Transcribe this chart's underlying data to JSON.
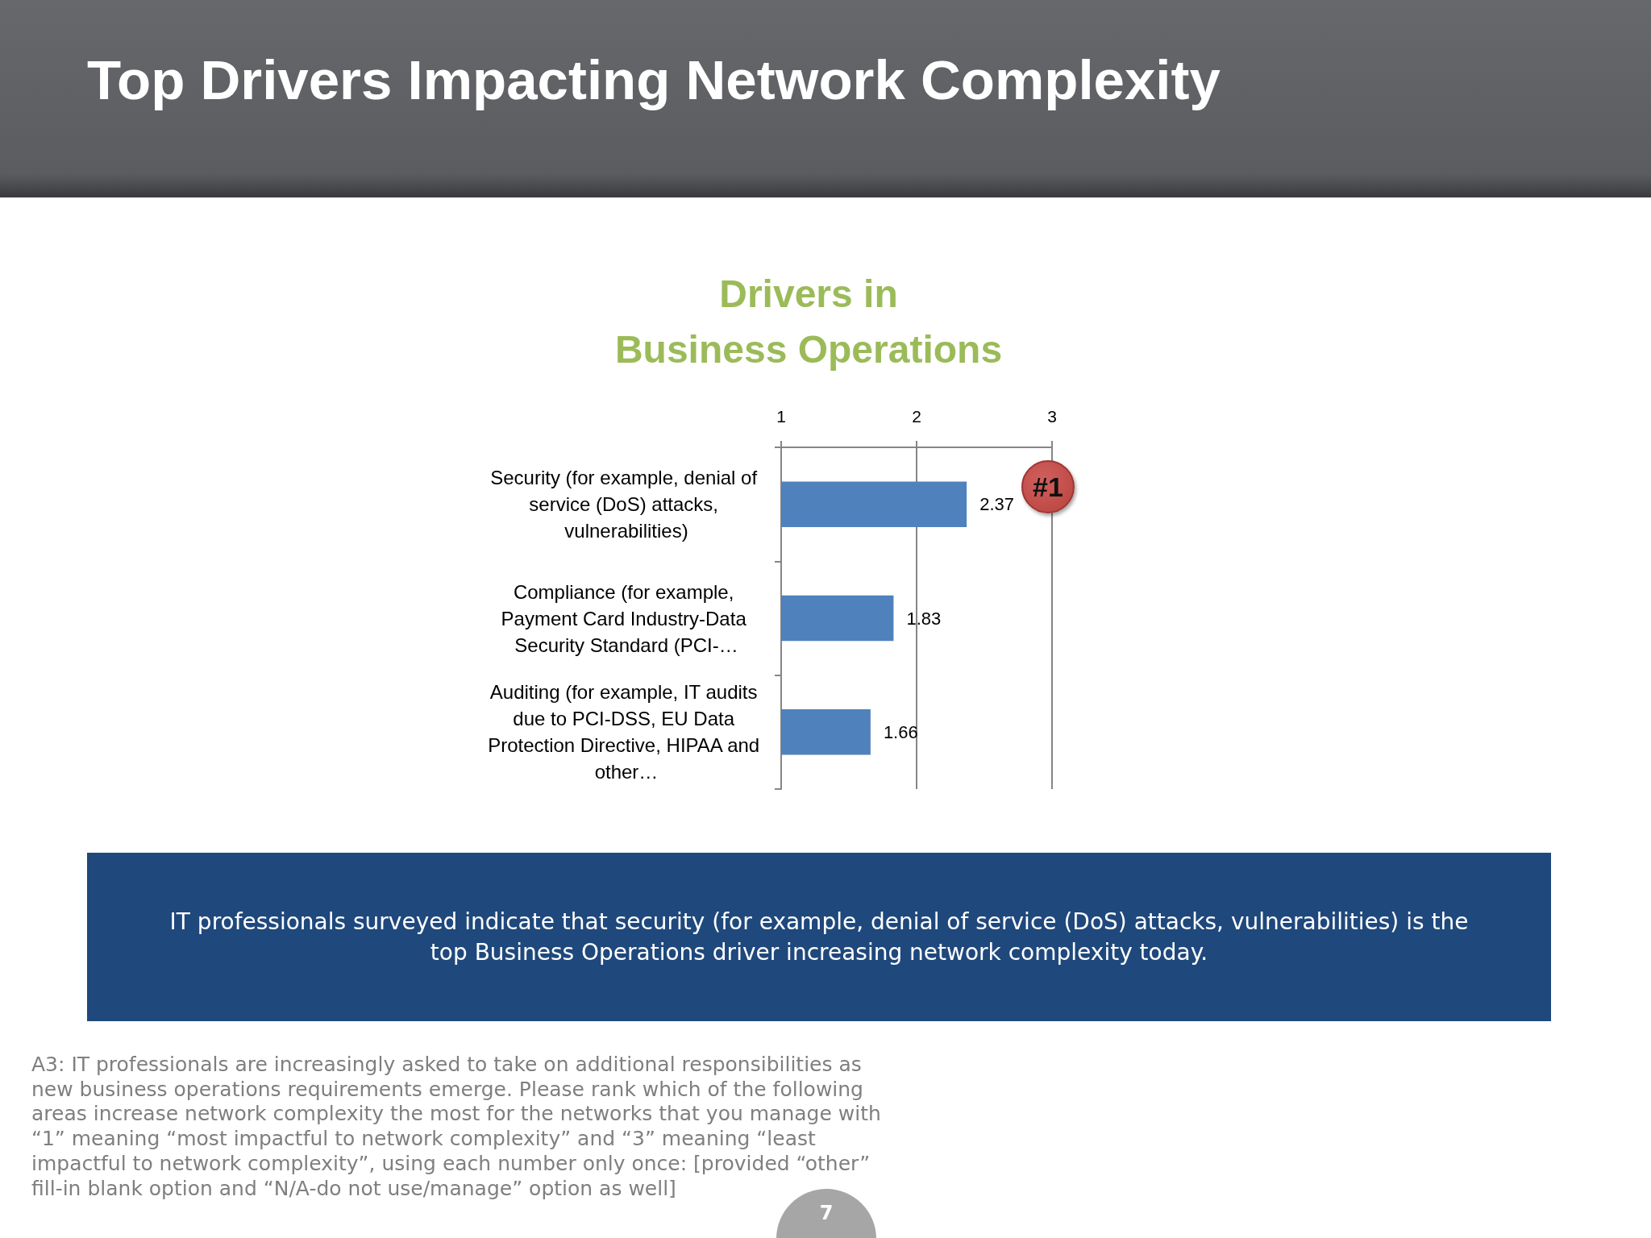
{
  "chart_data": {
    "type": "bar",
    "orientation": "horizontal",
    "title": "Top Drivers Impacting Network Complexity",
    "subtitle": "Drivers in\nBusiness Operations",
    "categories": [
      "Security (for example, denial of service (DoS) attacks, vulnerabilities)",
      "Compliance (for example, Payment Card Industry-Data Security Standard (PCI-…",
      "Auditing (for example, IT audits due to PCI-DSS, EU Data Protection Directive, HIPAA and other…"
    ],
    "values": [
      2.37,
      1.83,
      1.66
    ],
    "color": "#4f81bd",
    "xlim": [
      1,
      3
    ],
    "xticks": [
      1,
      2,
      3
    ],
    "grid": "x",
    "data_labels": true,
    "annotations": [
      "#1",
      "IT professionals surveyed indicate that security (for example, denial of service (DoS) attacks, vulnerabilities) is the top Business Operations driver increasing network complexity today.",
      "A3: IT professionals are increasingly asked to take on additional responsibilities as new business operations requirements emerge. Please rank which of the following areas increase network complexity the most for the networks that you manage with “1” meaning “most impactful to network complexity” and “3” meaning “least impactful to network complexity”, using each number only once: [provided “other” fill-in blank option and “N/A-do not use/manage” option as well]",
      "7"
    ]
  }
}
